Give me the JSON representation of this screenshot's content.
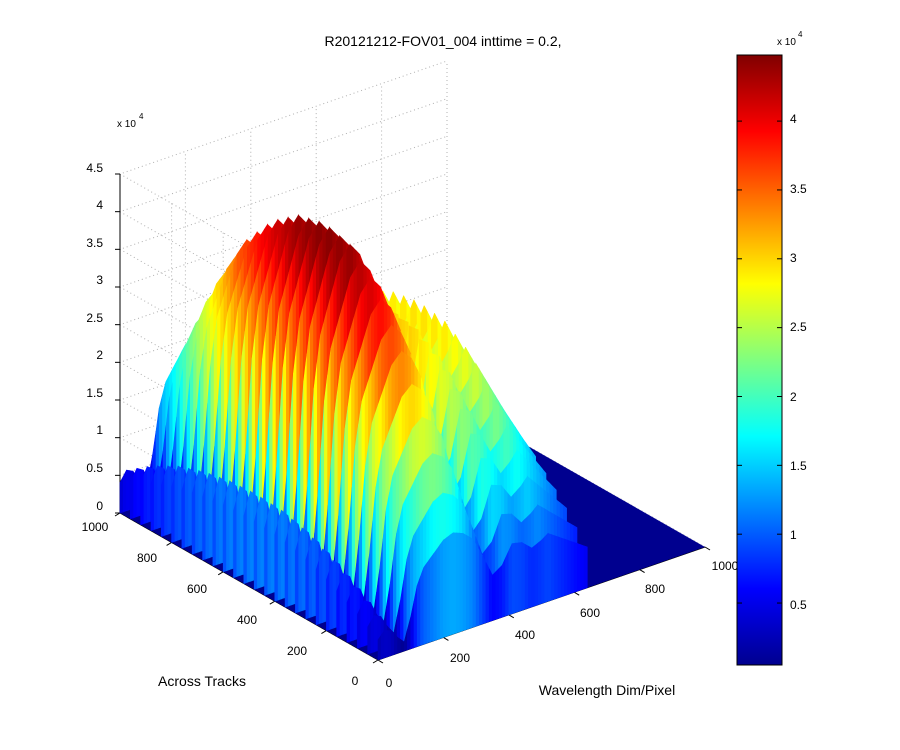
{
  "chart_data": {
    "type": "surface",
    "title": "R20121212-FOV01_004 inttime = 0.2,",
    "xlabel": "Wavelength Dim/Pixel",
    "ylabel": "Across Tracks",
    "zlabel": "",
    "xlim": [
      0,
      1000
    ],
    "ylim": [
      0,
      1000
    ],
    "zlim": [
      0,
      45000
    ],
    "x_ticks": [
      "0",
      "200",
      "400",
      "600",
      "800",
      "1000"
    ],
    "y_ticks": [
      "0",
      "200",
      "400",
      "600",
      "800",
      "1000"
    ],
    "z_ticks": [
      "0",
      "0.5",
      "1",
      "1.5",
      "2",
      "2.5",
      "3",
      "3.5",
      "4",
      "4.5"
    ],
    "z_multiplier": {
      "base": "x 10",
      "exponent": "4"
    },
    "grid": true,
    "colormap": "jet",
    "colorbar": {
      "location": "right",
      "range": [
        500,
        44800
      ],
      "ticks": [
        "0.5",
        "1",
        "1.5",
        "2",
        "2.5",
        "3",
        "3.5",
        "4"
      ],
      "multiplier": {
        "base": "x 10",
        "exponent": "4"
      }
    },
    "signal_region": {
      "x_range": [
        0,
        640
      ],
      "y_range": [
        0,
        1000
      ],
      "baseline": 0
    },
    "profile": {
      "x": [
        0,
        20,
        40,
        60,
        80,
        100,
        120,
        140,
        160,
        180,
        200,
        230,
        260,
        290,
        320,
        350,
        380,
        410,
        440,
        470,
        500,
        520,
        540,
        560,
        580,
        600,
        620,
        640
      ],
      "z": [
        9000,
        12000,
        11000,
        7000,
        4000,
        14000,
        27000,
        34000,
        37000,
        40000,
        43000,
        44800,
        43000,
        39000,
        30000,
        20000,
        23000,
        31000,
        30000,
        26000,
        28000,
        30000,
        28000,
        26000,
        24000,
        22000,
        20000,
        18000
      ]
    },
    "across_track_profile": {
      "y": [
        0,
        100,
        200,
        300,
        400,
        500,
        600,
        700,
        800,
        900,
        1000
      ],
      "factor": [
        0.3,
        0.55,
        0.75,
        0.9,
        0.98,
        1.0,
        0.98,
        0.92,
        0.82,
        0.66,
        0.45
      ]
    }
  }
}
